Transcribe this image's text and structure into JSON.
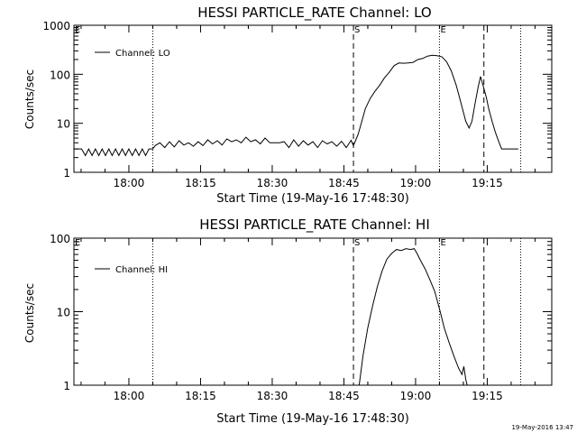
{
  "footer": {
    "timestamp": "19-May-2016 13:47"
  },
  "chart_data": [
    {
      "type": "line",
      "title": "HESSI PARTICLE_RATE Channel: LO",
      "xlabel": "Start Time (19-May-16 17:48:30)",
      "ylabel": "Counts/sec",
      "yscale": "log",
      "xunits": "minutes since 17:48:30",
      "xlim": [
        0,
        100
      ],
      "ylim": [
        1,
        1000
      ],
      "x_ticks": [
        {
          "v": 11.5,
          "label": "18:00"
        },
        {
          "v": 26.5,
          "label": "18:15"
        },
        {
          "v": 41.5,
          "label": "18:30"
        },
        {
          "v": 56.5,
          "label": "18:45"
        },
        {
          "v": 71.5,
          "label": "19:00"
        },
        {
          "v": 86.5,
          "label": "19:15"
        }
      ],
      "y_ticks": [
        {
          "v": 1,
          "label": "1"
        },
        {
          "v": 10,
          "label": "10"
        },
        {
          "v": 100,
          "label": "100"
        },
        {
          "v": 1000,
          "label": "1000"
        }
      ],
      "legend": {
        "label": "Channel: LO",
        "position": "top-left"
      },
      "markers": [
        {
          "x": 0,
          "label": "E",
          "style": "none"
        },
        {
          "x": 16.5,
          "label": "",
          "style": "dotted"
        },
        {
          "x": 58.5,
          "label": "S",
          "style": "dashed"
        },
        {
          "x": 76.5,
          "label": "E",
          "style": "dotted"
        },
        {
          "x": 85.8,
          "label": "",
          "style": "dashed"
        },
        {
          "x": 93.5,
          "label": "",
          "style": "dotted"
        }
      ],
      "series": [
        {
          "points": [
            [
              0,
              3
            ],
            [
              1.6,
              3
            ],
            [
              2.4,
              2.2
            ],
            [
              3.1,
              3
            ],
            [
              3.8,
              2.2
            ],
            [
              4.5,
              3
            ],
            [
              5.2,
              2.2
            ],
            [
              5.9,
              3
            ],
            [
              6.6,
              2.2
            ],
            [
              7.3,
              3
            ],
            [
              8,
              2.2
            ],
            [
              8.7,
              3
            ],
            [
              9.4,
              2.2
            ],
            [
              10.1,
              3
            ],
            [
              10.8,
              2.2
            ],
            [
              11.5,
              3
            ],
            [
              12.2,
              2.2
            ],
            [
              12.9,
              3
            ],
            [
              13.6,
              2.2
            ],
            [
              14.3,
              3
            ],
            [
              15,
              2.2
            ],
            [
              15.7,
              3
            ],
            [
              16.5,
              3
            ],
            [
              17,
              3.5
            ],
            [
              18,
              4
            ],
            [
              19,
              3.2
            ],
            [
              20,
              4.2
            ],
            [
              21,
              3.3
            ],
            [
              22,
              4.4
            ],
            [
              23,
              3.6
            ],
            [
              24,
              4
            ],
            [
              25,
              3.4
            ],
            [
              26,
              4.2
            ],
            [
              27,
              3.5
            ],
            [
              28,
              4.6
            ],
            [
              29,
              3.8
            ],
            [
              30,
              4.4
            ],
            [
              31,
              3.6
            ],
            [
              32,
              4.8
            ],
            [
              33,
              4.2
            ],
            [
              34,
              4.6
            ],
            [
              35,
              4
            ],
            [
              36,
              5.2
            ],
            [
              37,
              4.2
            ],
            [
              38,
              4.6
            ],
            [
              39,
              3.8
            ],
            [
              40,
              5
            ],
            [
              41,
              4
            ],
            [
              43,
              4
            ],
            [
              44,
              4.2
            ],
            [
              45,
              3.2
            ],
            [
              46,
              4.6
            ],
            [
              47,
              3.4
            ],
            [
              48,
              4.4
            ],
            [
              49,
              3.6
            ],
            [
              50,
              4.2
            ],
            [
              51,
              3.2
            ],
            [
              52,
              4.4
            ],
            [
              53,
              3.8
            ],
            [
              54,
              4.2
            ],
            [
              55,
              3.4
            ],
            [
              56,
              4.3
            ],
            [
              57,
              3.2
            ],
            [
              58,
              4.5
            ],
            [
              58.5,
              3.5
            ],
            [
              59,
              4.6
            ],
            [
              59.5,
              6
            ],
            [
              61,
              20
            ],
            [
              62,
              32
            ],
            [
              63,
              45
            ],
            [
              64,
              60
            ],
            [
              65,
              85
            ],
            [
              66,
              110
            ],
            [
              67,
              150
            ],
            [
              68,
              170
            ],
            [
              69,
              168
            ],
            [
              70,
              170
            ],
            [
              71,
              175
            ],
            [
              72,
              200
            ],
            [
              73,
              210
            ],
            [
              74,
              235
            ],
            [
              75,
              245
            ],
            [
              76,
              240
            ],
            [
              77,
              228
            ],
            [
              78,
              180
            ],
            [
              79,
              115
            ],
            [
              80,
              60
            ],
            [
              81,
              26
            ],
            [
              82,
              11
            ],
            [
              82.7,
              8
            ],
            [
              83.3,
              11
            ],
            [
              84,
              27
            ],
            [
              84.6,
              55
            ],
            [
              85.1,
              90
            ],
            [
              85.6,
              60
            ],
            [
              86.3,
              34
            ],
            [
              86.8,
              20
            ],
            [
              87.5,
              11
            ],
            [
              88.2,
              6.5
            ],
            [
              89,
              4
            ],
            [
              89.5,
              3
            ],
            [
              92,
              3
            ],
            [
              93,
              3
            ]
          ]
        }
      ]
    },
    {
      "type": "line",
      "title": "HESSI PARTICLE_RATE Channel: HI",
      "xlabel": "Start Time (19-May-16 17:48:30)",
      "ylabel": "Counts/sec",
      "yscale": "log",
      "xunits": "minutes since 17:48:30",
      "xlim": [
        0,
        100
      ],
      "ylim": [
        1,
        100
      ],
      "x_ticks": [
        {
          "v": 11.5,
          "label": "18:00"
        },
        {
          "v": 26.5,
          "label": "18:15"
        },
        {
          "v": 41.5,
          "label": "18:30"
        },
        {
          "v": 56.5,
          "label": "18:45"
        },
        {
          "v": 71.5,
          "label": "19:00"
        },
        {
          "v": 86.5,
          "label": "19:15"
        }
      ],
      "y_ticks": [
        {
          "v": 1,
          "label": "1"
        },
        {
          "v": 10,
          "label": "10"
        },
        {
          "v": 100,
          "label": "100"
        }
      ],
      "legend": {
        "label": "Channel: HI",
        "position": "top-left"
      },
      "markers": [
        {
          "x": 0,
          "label": "E",
          "style": "none"
        },
        {
          "x": 16.5,
          "label": "",
          "style": "dotted"
        },
        {
          "x": 58.5,
          "label": "S",
          "style": "dashed"
        },
        {
          "x": 76.5,
          "label": "E",
          "style": "dotted"
        },
        {
          "x": 85.8,
          "label": "",
          "style": "dashed"
        },
        {
          "x": 93.5,
          "label": "",
          "style": "dotted"
        }
      ],
      "series": [
        {
          "points": [
            [
              59.7,
              1
            ],
            [
              60.5,
              2.5
            ],
            [
              61.5,
              6
            ],
            [
              62.5,
              12
            ],
            [
              63.5,
              22
            ],
            [
              64.5,
              36
            ],
            [
              65.5,
              52
            ],
            [
              66.5,
              62
            ],
            [
              67.5,
              70
            ],
            [
              68.5,
              68
            ],
            [
              69.5,
              72
            ],
            [
              70.5,
              70
            ],
            [
              71.2,
              72
            ],
            [
              71.8,
              62
            ],
            [
              72.5,
              50
            ],
            [
              73.5,
              38
            ],
            [
              74.5,
              27
            ],
            [
              75.5,
              19
            ],
            [
              76.5,
              11
            ],
            [
              77.5,
              6
            ],
            [
              78.5,
              3.8
            ],
            [
              79.5,
              2.5
            ],
            [
              80.5,
              1.7
            ],
            [
              81.2,
              1.4
            ],
            [
              81.6,
              1.8
            ],
            [
              82,
              1.2
            ],
            [
              82.3,
              1
            ]
          ]
        }
      ]
    }
  ]
}
